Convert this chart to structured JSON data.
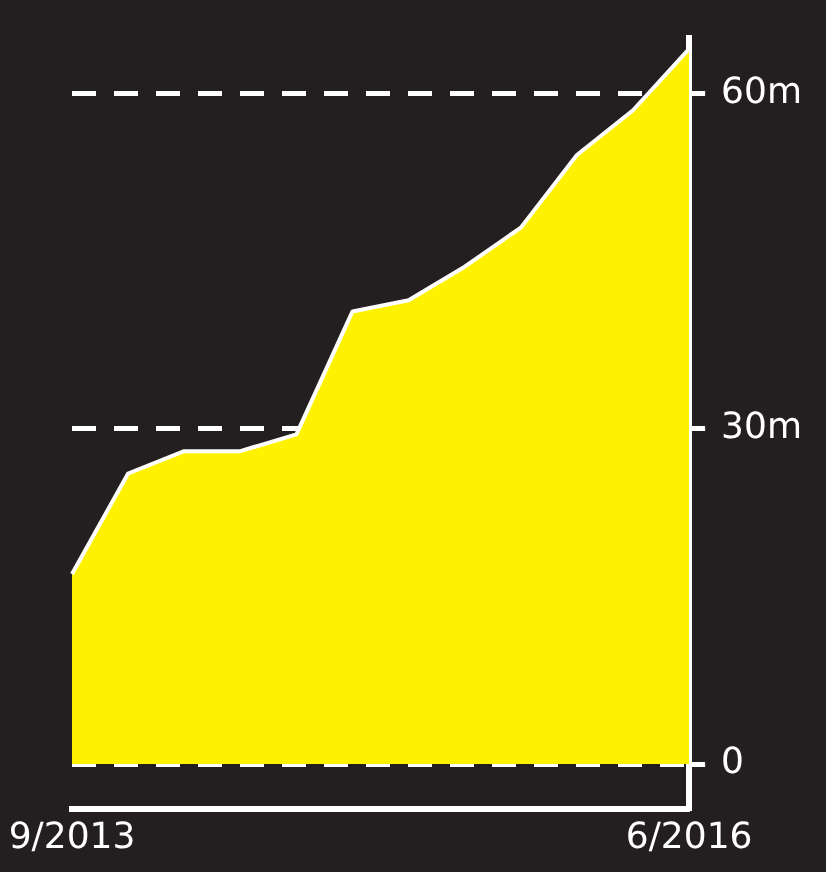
{
  "chart_data": {
    "type": "area",
    "categories": [
      "9/2013",
      null,
      null,
      null,
      null,
      null,
      null,
      null,
      null,
      null,
      null,
      "6/2016"
    ],
    "series": [
      {
        "color": "#fff200",
        "values": [
          17,
          26,
          28,
          28,
          29.5,
          40.5,
          41.5,
          44.5,
          48,
          54.5,
          58.5,
          64
        ]
      }
    ],
    "ylim": [
      -4,
      65
    ],
    "yticks": [
      0,
      {
        "value": 30,
        "label": "30m"
      },
      {
        "value": 60,
        "label": "60m"
      }
    ],
    "grid": "y",
    "legend": false
  }
}
